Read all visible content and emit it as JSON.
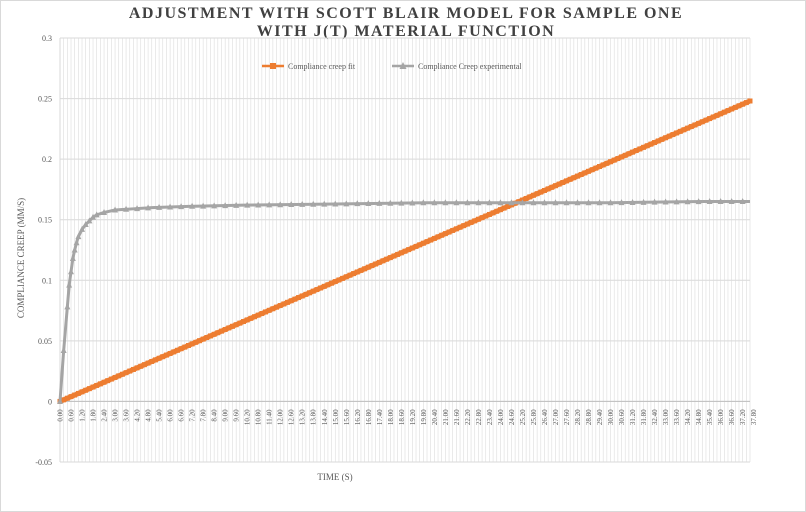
{
  "chart_data": {
    "type": "line",
    "title_line1": "ADJUSTMENT WITH SCOTT BLAIR MODEL  FOR SAMPLE ONE",
    "title_line2": "WITH J(T) MATERIAL FUNCTION",
    "xlabel": "TIME (S)",
    "ylabel": "COMPLIANCE CREEP (MM/S)",
    "ylim": [
      -0.05,
      0.3
    ],
    "yticks": [
      "-0.05",
      "0",
      "0.05",
      "0.1",
      "0.15",
      "0.2",
      "0.25",
      "0.3"
    ],
    "xlim": [
      0,
      37.6
    ],
    "xtick_step": 0.6,
    "legend_position": "top",
    "grid": true,
    "series": [
      {
        "name": "Compliance creep fit",
        "color": "#ed7d31",
        "marker": "square",
        "x": [
          0,
          37.6
        ],
        "y": [
          0,
          0.248
        ]
      },
      {
        "name": "Compliance Creep experimental",
        "color": "#a5a5a5",
        "marker": "triangle",
        "x": [
          0,
          0.2,
          0.4,
          0.5,
          0.6,
          0.7,
          0.8,
          0.9,
          1.0,
          1.2,
          1.4,
          1.6,
          1.8,
          2.0,
          2.4,
          3.0,
          4.0,
          5.0,
          7.0,
          10.0,
          15.0,
          20.0,
          25.0,
          30.0,
          35.0,
          37.6
        ],
        "y": [
          0,
          0.042,
          0.078,
          0.096,
          0.107,
          0.118,
          0.125,
          0.131,
          0.136,
          0.142,
          0.146,
          0.149,
          0.152,
          0.154,
          0.156,
          0.158,
          0.159,
          0.16,
          0.161,
          0.162,
          0.163,
          0.164,
          0.164,
          0.164,
          0.165,
          0.165
        ]
      }
    ]
  }
}
